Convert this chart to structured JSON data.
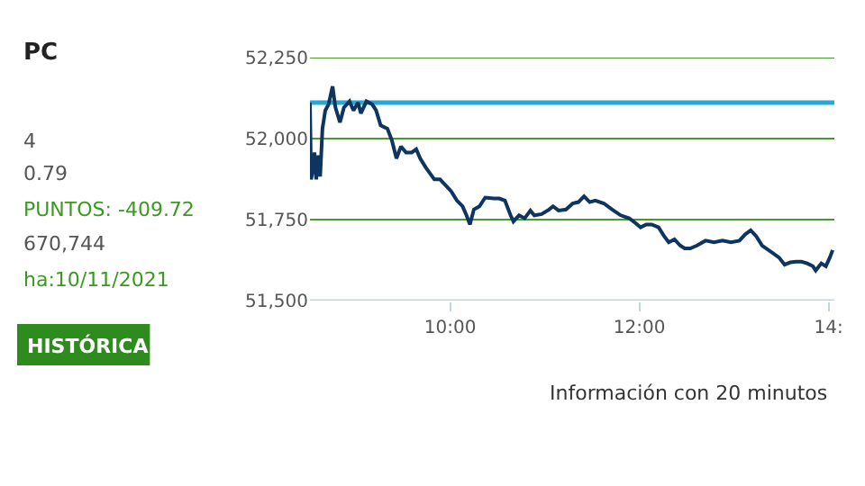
{
  "chart_data": {
    "type": "line",
    "x": [
      8.519,
      8.531,
      8.549,
      8.567,
      8.585,
      8.609,
      8.627,
      8.651,
      8.681,
      8.716,
      8.758,
      8.788,
      8.836,
      8.878,
      8.937,
      8.979,
      9.027,
      9.057,
      9.116,
      9.176,
      9.218,
      9.266,
      9.337,
      9.385,
      9.433,
      9.481,
      9.534,
      9.594,
      9.642,
      9.684,
      9.743,
      9.833,
      9.893,
      9.952,
      10.012,
      10.072,
      10.131,
      10.173,
      10.209,
      10.251,
      10.31,
      10.37,
      10.46,
      10.519,
      10.579,
      10.639,
      10.669,
      10.728,
      10.788,
      10.848,
      10.89,
      10.967,
      11.045,
      11.087,
      11.146,
      11.224,
      11.296,
      11.355,
      11.415,
      11.475,
      11.534,
      11.624,
      11.713,
      11.803,
      11.893,
      11.952,
      12.012,
      12.072,
      12.131,
      12.203,
      12.263,
      12.31,
      12.37,
      12.43,
      12.478,
      12.537,
      12.609,
      12.699,
      12.788,
      12.878,
      12.967,
      13.057,
      13.116,
      13.176,
      13.236,
      13.296,
      13.385,
      13.475,
      13.534,
      13.594,
      13.654,
      13.713,
      13.773,
      13.833,
      13.863,
      13.922,
      13.97,
      14.012,
      14.042
    ],
    "series": [
      {
        "color": "#0d3560",
        "values": [
          52111,
          51874,
          51902,
          51957,
          51874,
          51948,
          51883,
          52031,
          52087,
          52106,
          52161,
          52096,
          52050,
          52096,
          52115,
          52087,
          52111,
          52078,
          52115,
          52106,
          52087,
          52041,
          52031,
          51994,
          51939,
          51976,
          51957,
          51957,
          51967,
          51939,
          51911,
          51874,
          51874,
          51856,
          51837,
          51809,
          51791,
          51763,
          51735,
          51781,
          51791,
          51818,
          51815,
          51815,
          51809,
          51763,
          51744,
          51763,
          51754,
          51778,
          51763,
          51767,
          51781,
          51791,
          51778,
          51781,
          51800,
          51804,
          51822,
          51804,
          51809,
          51800,
          51781,
          51763,
          51754,
          51741,
          51726,
          51735,
          51735,
          51726,
          51698,
          51680,
          51689,
          51670,
          51661,
          51661,
          51670,
          51685,
          51680,
          51685,
          51680,
          51685,
          51704,
          51717,
          51698,
          51670,
          51652,
          51633,
          51611,
          51618,
          51620,
          51620,
          51615,
          51606,
          51593,
          51615,
          51606,
          51633,
          51656
        ]
      }
    ],
    "xlim": [
      8.519,
      14.06
    ],
    "xticks": [
      {
        "value": 10,
        "label": "10:00"
      },
      {
        "value": 12,
        "label": "12:00"
      },
      {
        "value": 14,
        "label": "14:"
      }
    ],
    "ylim": [
      51500,
      52250
    ],
    "yticks": [
      {
        "value": 51500,
        "label": "51,500"
      },
      {
        "value": 51750,
        "label": "51,750"
      },
      {
        "value": 52000,
        "label": "52,000"
      },
      {
        "value": 52250,
        "label": "52,250"
      }
    ],
    "grid": "y",
    "ref_lines": [
      {
        "axis": "y",
        "value": 52111,
        "color": "#29a8d8"
      }
    ],
    "annotations": [
      "PC",
      "4",
      "0.79",
      "PUNTOS: -409.72",
      "670,744",
      "ha:10/11/2021",
      "HISTÓRICA",
      "Información con 20 minutos"
    ]
  }
}
